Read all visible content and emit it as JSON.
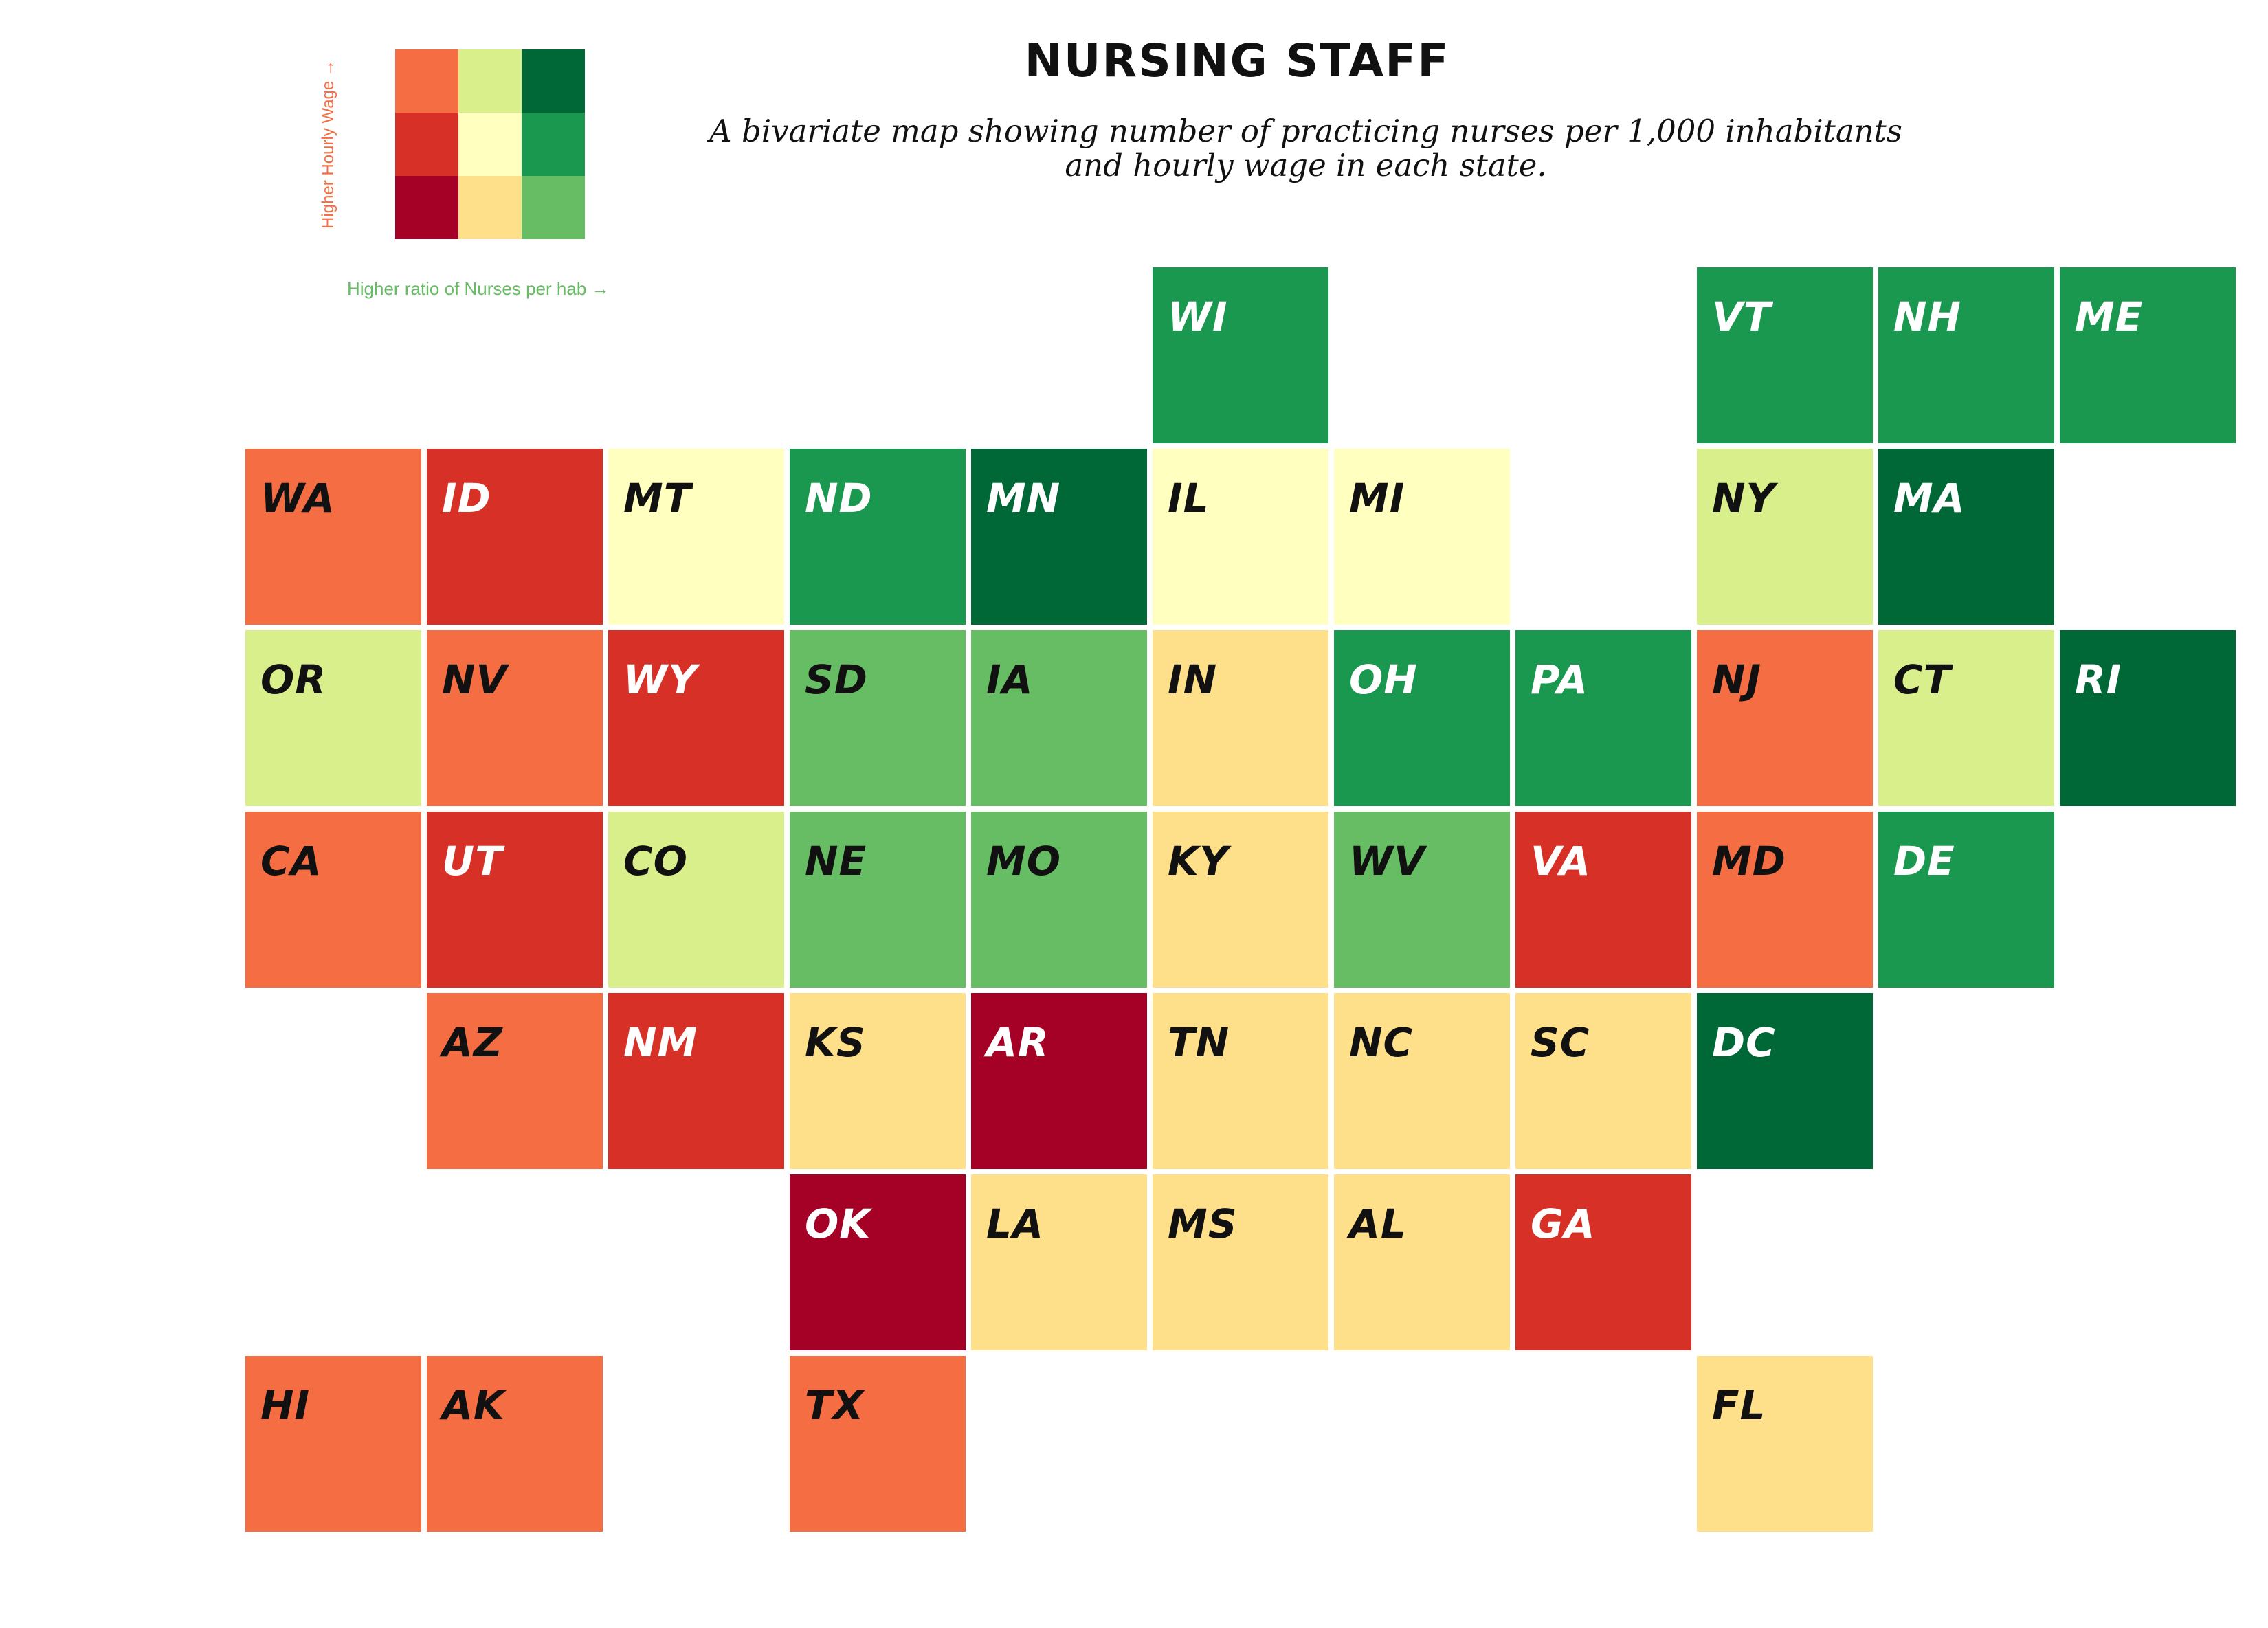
{
  "title": "NURSING STAFF",
  "subtitle": {
    "line1": "A bivariate map showing number of practicing nurses  per 1,000 inhabitants",
    "line2": "and hourly wage in each state."
  },
  "legend": {
    "y_label": "Higher Hourly Wage →",
    "x_label": "Higher ratio of Nurses per hab →",
    "y_label_color": "#f46d43",
    "x_label_color": "#66bd63",
    "rows": [
      [
        "#f46d43",
        "#d9ef8b",
        "#006837"
      ],
      [
        "#d73027",
        "#ffffbf",
        "#1a9850"
      ],
      [
        "#a50026",
        "#fee08b",
        "#66bd63"
      ]
    ]
  },
  "chart_data": {
    "type": "heatmap",
    "title": "NURSING STAFF",
    "subtitle": "A bivariate map showing number of practicing nurses  per 1,000 inhabitants and hourly wage in each state.",
    "grid": {
      "columns": 11,
      "rows": 7
    },
    "states": [
      {
        "code": "WI",
        "col": 6,
        "row": 0,
        "color": "#1a9850"
      },
      {
        "code": "VT",
        "col": 9,
        "row": 0,
        "color": "#1a9850"
      },
      {
        "code": "NH",
        "col": 10,
        "row": 0,
        "color": "#1a9850"
      },
      {
        "code": "ME",
        "col": 11,
        "row": 0,
        "color": "#1a9850"
      },
      {
        "code": "WA",
        "col": 1,
        "row": 1,
        "color": "#f46d43"
      },
      {
        "code": "ID",
        "col": 2,
        "row": 1,
        "color": "#d73027"
      },
      {
        "code": "MT",
        "col": 3,
        "row": 1,
        "color": "#ffffbf"
      },
      {
        "code": "ND",
        "col": 4,
        "row": 1,
        "color": "#1a9850"
      },
      {
        "code": "MN",
        "col": 5,
        "row": 1,
        "color": "#006837"
      },
      {
        "code": "IL",
        "col": 6,
        "row": 1,
        "color": "#ffffbf"
      },
      {
        "code": "MI",
        "col": 7,
        "row": 1,
        "color": "#ffffbf"
      },
      {
        "code": "NY",
        "col": 9,
        "row": 1,
        "color": "#d9ef8b"
      },
      {
        "code": "MA",
        "col": 10,
        "row": 1,
        "color": "#006837"
      },
      {
        "code": "OR",
        "col": 1,
        "row": 2,
        "color": "#d9ef8b"
      },
      {
        "code": "NV",
        "col": 2,
        "row": 2,
        "color": "#f46d43"
      },
      {
        "code": "WY",
        "col": 3,
        "row": 2,
        "color": "#d73027"
      },
      {
        "code": "SD",
        "col": 4,
        "row": 2,
        "color": "#66bd63"
      },
      {
        "code": "IA",
        "col": 5,
        "row": 2,
        "color": "#66bd63"
      },
      {
        "code": "IN",
        "col": 6,
        "row": 2,
        "color": "#fee08b"
      },
      {
        "code": "OH",
        "col": 7,
        "row": 2,
        "color": "#1a9850"
      },
      {
        "code": "PA",
        "col": 8,
        "row": 2,
        "color": "#1a9850"
      },
      {
        "code": "NJ",
        "col": 9,
        "row": 2,
        "color": "#f46d43"
      },
      {
        "code": "CT",
        "col": 10,
        "row": 2,
        "color": "#d9ef8b"
      },
      {
        "code": "RI",
        "col": 11,
        "row": 2,
        "color": "#006837"
      },
      {
        "code": "CA",
        "col": 1,
        "row": 3,
        "color": "#f46d43"
      },
      {
        "code": "UT",
        "col": 2,
        "row": 3,
        "color": "#d73027"
      },
      {
        "code": "CO",
        "col": 3,
        "row": 3,
        "color": "#d9ef8b"
      },
      {
        "code": "NE",
        "col": 4,
        "row": 3,
        "color": "#66bd63"
      },
      {
        "code": "MO",
        "col": 5,
        "row": 3,
        "color": "#66bd63"
      },
      {
        "code": "KY",
        "col": 6,
        "row": 3,
        "color": "#fee08b"
      },
      {
        "code": "WV",
        "col": 7,
        "row": 3,
        "color": "#66bd63"
      },
      {
        "code": "VA",
        "col": 8,
        "row": 3,
        "color": "#d73027"
      },
      {
        "code": "MD",
        "col": 9,
        "row": 3,
        "color": "#f46d43"
      },
      {
        "code": "DE",
        "col": 10,
        "row": 3,
        "color": "#1a9850"
      },
      {
        "code": "AZ",
        "col": 2,
        "row": 4,
        "color": "#f46d43"
      },
      {
        "code": "NM",
        "col": 3,
        "row": 4,
        "color": "#d73027"
      },
      {
        "code": "KS",
        "col": 4,
        "row": 4,
        "color": "#fee08b"
      },
      {
        "code": "AR",
        "col": 5,
        "row": 4,
        "color": "#a50026"
      },
      {
        "code": "TN",
        "col": 6,
        "row": 4,
        "color": "#fee08b"
      },
      {
        "code": "NC",
        "col": 7,
        "row": 4,
        "color": "#fee08b"
      },
      {
        "code": "SC",
        "col": 8,
        "row": 4,
        "color": "#fee08b"
      },
      {
        "code": "DC",
        "col": 9,
        "row": 4,
        "color": "#006837"
      },
      {
        "code": "OK",
        "col": 4,
        "row": 5,
        "color": "#a50026"
      },
      {
        "code": "LA",
        "col": 5,
        "row": 5,
        "color": "#fee08b"
      },
      {
        "code": "MS",
        "col": 6,
        "row": 5,
        "color": "#fee08b"
      },
      {
        "code": "AL",
        "col": 7,
        "row": 5,
        "color": "#fee08b"
      },
      {
        "code": "GA",
        "col": 8,
        "row": 5,
        "color": "#d73027"
      },
      {
        "code": "HI",
        "col": 1,
        "row": 6,
        "color": "#f46d43"
      },
      {
        "code": "AK",
        "col": 2,
        "row": 6,
        "color": "#f46d43"
      },
      {
        "code": "TX",
        "col": 4,
        "row": 6,
        "color": "#f46d43"
      },
      {
        "code": "FL",
        "col": 9,
        "row": 6,
        "color": "#fee08b"
      }
    ]
  }
}
